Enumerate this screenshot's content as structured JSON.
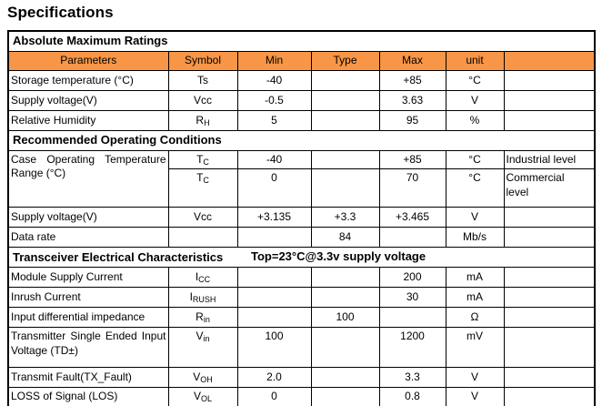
{
  "title": "Specifications",
  "colors": {
    "header_bg": "#F79646",
    "border": "#000000",
    "text": "#000000",
    "page_bg": "#FFFFFF"
  },
  "table": {
    "columns": [
      "Parameters",
      "Symbol",
      "Min",
      "Type",
      "Max",
      "unit",
      ""
    ],
    "sections": {
      "abs_max": "Absolute Maximum Ratings",
      "rec_op": "Recommended Operating Conditions",
      "transceiver": "Transceiver Electrical Characteristics",
      "transceiver_note": "Top=23°C@3.3v supply voltage"
    },
    "rows": {
      "storage": {
        "param": "Storage temperature (°C)",
        "sym": "Ts",
        "sub": "",
        "min": "-40",
        "type": "",
        "max": "+85",
        "unit": "°C",
        "note": ""
      },
      "supply1": {
        "param": "Supply voltage(V)",
        "sym": "Vcc",
        "sub": "",
        "min": "-0.5",
        "type": "",
        "max": "3.63",
        "unit": "V",
        "note": ""
      },
      "humidity": {
        "param": "Relative Humidity",
        "sym": "R",
        "sub": "H",
        "min": "5",
        "type": "",
        "max": "95",
        "unit": "%",
        "note": ""
      },
      "case1": {
        "param": "Case Operating Temperature Range (°C)",
        "sym": "T",
        "sub": "C",
        "min": "-40",
        "type": "",
        "max": "+85",
        "unit": "°C",
        "note": "Industrial level"
      },
      "case2": {
        "sym": "T",
        "sub": "C",
        "min": "0",
        "type": "",
        "max": "70",
        "unit": "°C",
        "note": "Commercial level"
      },
      "supply2": {
        "param": "Supply voltage(V)",
        "sym": "Vcc",
        "sub": "",
        "min": "+3.135",
        "type": "+3.3",
        "max": "+3.465",
        "unit": "V",
        "note": ""
      },
      "datarate": {
        "param": "Data rate",
        "sym": "",
        "sub": "",
        "min": "",
        "type": "84",
        "max": "",
        "unit": "Mb/s",
        "note": ""
      },
      "module": {
        "param": "Module Supply Current",
        "sym": "I",
        "sub": "CC",
        "min": "",
        "type": "",
        "max": "200",
        "unit": "mA",
        "note": ""
      },
      "inrush": {
        "param": "Inrush Current",
        "sym": "I",
        "sub": "RUSH",
        "min": "",
        "type": "",
        "max": "30",
        "unit": "mA",
        "note": ""
      },
      "impedance": {
        "param": "Input differential impedance",
        "sym": "R",
        "sub": "in",
        "min": "",
        "type": "100",
        "max": "",
        "unit": "Ω",
        "note": ""
      },
      "transmitter": {
        "param": "Transmitter Single Ended Input Voltage (TD±)",
        "sym": "V",
        "sub": "in",
        "min": "100",
        "type": "",
        "max": "1200",
        "unit": "mV",
        "note": ""
      },
      "txfault": {
        "param": "Transmit Fault(TX_Fault)",
        "sym": "V",
        "sub": "OH",
        "min": "2.0",
        "type": "",
        "max": "3.3",
        "unit": "V",
        "note": ""
      },
      "los": {
        "param": "LOSS of Signal (LOS)",
        "sym": "V",
        "sub": "OL",
        "min": "0",
        "type": "",
        "max": "0.8",
        "unit": "V",
        "note": ""
      }
    }
  }
}
